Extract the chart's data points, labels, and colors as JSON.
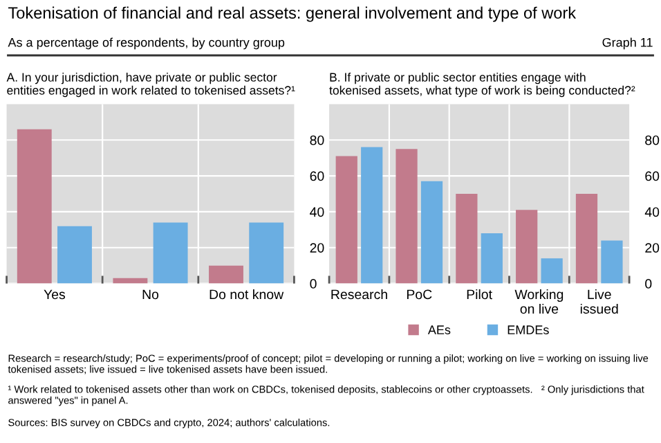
{
  "chart_data": [
    {
      "type": "bar",
      "title": "Tokenisation of financial and real assets: general involvement and type of work",
      "subtitle": "As a percentage of respondents, by country group",
      "annotations": [
        "Graph 11"
      ],
      "xlabel": "A. In your jurisdiction, have private or public sector\nentities engaged in work related to tokenised assets?¹",
      "categories": [
        "Yes",
        "No",
        "Do not know"
      ],
      "series": [
        {
          "color": "#c27b8c",
          "values": [
            86,
            3,
            10
          ]
        },
        {
          "color": "#6aaee2",
          "values": [
            32,
            34,
            34
          ]
        }
      ],
      "ylim": [
        0,
        100
      ],
      "yticks": [
        0,
        20,
        40,
        60,
        80
      ],
      "grid": true,
      "legend": false
    },
    {
      "type": "bar",
      "xlabel": "B. If private or public sector entities engage with\ntokenised assets, what type of work is being conducted?²",
      "categories": [
        "Research",
        "PoC",
        "Pilot",
        "Working\non live",
        "Live\nissued"
      ],
      "series": [
        {
          "name": "AEs",
          "color": "#c27b8c",
          "values": [
            71,
            75,
            50,
            41,
            50
          ]
        },
        {
          "name": "EMDEs",
          "color": "#6aaee2",
          "values": [
            76,
            57,
            28,
            14,
            24
          ]
        }
      ],
      "ylim": [
        0,
        100
      ],
      "yticks": [
        0,
        20,
        40,
        60,
        80
      ],
      "grid": true,
      "legend": "bottom",
      "annotations": [
        "Research = research/study; PoC = experiments/proof of concept; pilot = developing or running a pilot; working on live = working on issuing live tokenised assets; live issued = live tokenised assets have been issued.",
        "¹ Work related to tokenised assets other than work on CBDCs, tokenised deposits, stablecoins or other cryptoassets.   ² Only jurisdictions that answered \"yes\" in panel A.",
        "Sources: BIS survey on CBDCs and crypto, 2024; authors' calculations."
      ]
    }
  ]
}
